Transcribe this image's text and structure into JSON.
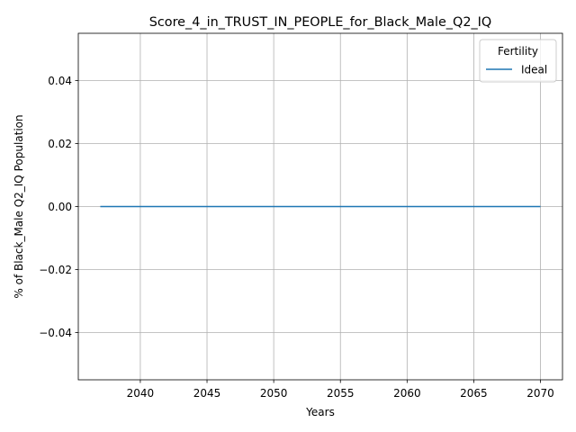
{
  "chart_data": {
    "type": "line",
    "title": "Score_4_in_TRUST_IN_PEOPLE_for_Black_Male_Q2_IQ",
    "xlabel": "Years",
    "ylabel": "% of Black_Male Q2_IQ Population",
    "xlim": [
      2035.35,
      2071.65
    ],
    "ylim": [
      -0.055,
      0.055
    ],
    "x_ticks": [
      2040,
      2045,
      2050,
      2055,
      2060,
      2065,
      2070
    ],
    "y_ticks": [
      -0.04,
      -0.02,
      0.0,
      0.02,
      0.04
    ],
    "y_tick_labels": [
      "−0.04",
      "−0.02",
      "0.00",
      "0.02",
      "0.04"
    ],
    "grid": true,
    "legend": {
      "title": "Fertility",
      "placement": "top-right"
    },
    "series": [
      {
        "name": "Ideal",
        "color": "#1f77b4",
        "x": [
          2037,
          2040,
          2045,
          2050,
          2055,
          2060,
          2065,
          2070
        ],
        "values": [
          0,
          0,
          0,
          0,
          0,
          0,
          0,
          0
        ]
      }
    ]
  }
}
